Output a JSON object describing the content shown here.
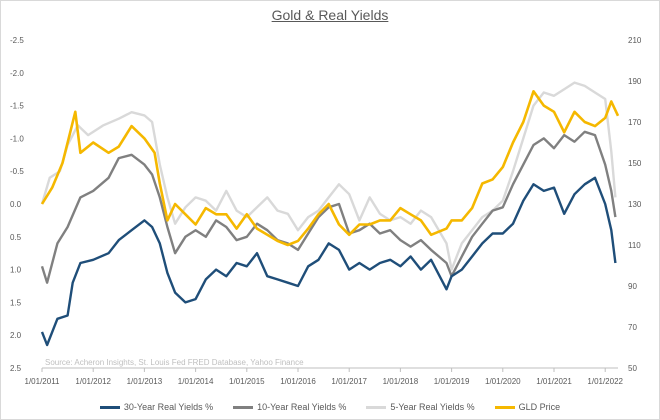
{
  "chart_data": {
    "type": "line",
    "title": "Gold & Real Yields",
    "source_note": "Source: Acheron Insights, St. Louis Fed FRED Database, Yahoo Finance",
    "left_axis": {
      "inverted": true,
      "range": [
        -2.5,
        2.5
      ],
      "tick_values": [
        -2.5,
        -2.0,
        -1.5,
        -1.0,
        -0.5,
        0.0,
        0.5,
        1.0,
        1.5,
        2.0,
        2.5
      ],
      "tick_labels": [
        "-2.5",
        "-2.0",
        "-1.5",
        "-1.0",
        "-0.5",
        "0.0",
        "0.5",
        "1.0",
        "1.5",
        "2.0",
        "2.5"
      ]
    },
    "right_axis": {
      "range": [
        50,
        210
      ],
      "tick_values": [
        210,
        190,
        170,
        150,
        130,
        110,
        90,
        70,
        50
      ],
      "tick_labels": [
        "210",
        "190",
        "170",
        "150",
        "130",
        "110",
        "90",
        "70",
        "50"
      ]
    },
    "x_axis": {
      "range": [
        2011.0,
        2022.25
      ],
      "tick_values": [
        2011,
        2012,
        2013,
        2014,
        2015,
        2016,
        2017,
        2018,
        2019,
        2020,
        2021,
        2022
      ],
      "tick_labels": [
        "1/01/2011",
        "1/01/2012",
        "1/01/2013",
        "1/01/2014",
        "1/01/2015",
        "1/01/2016",
        "1/01/2017",
        "1/01/2018",
        "1/01/2019",
        "1/01/2020",
        "1/01/2021",
        "1/01/2022"
      ]
    },
    "grid": false,
    "legend_position": "bottom",
    "series": [
      {
        "name": "5-Year Real Yields %",
        "axis": "left",
        "color": "#d9d9d9",
        "points": [
          [
            2011.0,
            0.0
          ],
          [
            2011.15,
            -0.4
          ],
          [
            2011.35,
            -0.5
          ],
          [
            2011.5,
            -0.9
          ],
          [
            2011.7,
            -1.2
          ],
          [
            2011.9,
            -1.05
          ],
          [
            2012.2,
            -1.2
          ],
          [
            2012.5,
            -1.3
          ],
          [
            2012.75,
            -1.4
          ],
          [
            2013.0,
            -1.35
          ],
          [
            2013.15,
            -1.25
          ],
          [
            2013.3,
            -0.6
          ],
          [
            2013.45,
            -0.1
          ],
          [
            2013.6,
            0.3
          ],
          [
            2013.8,
            0.05
          ],
          [
            2014.0,
            -0.1
          ],
          [
            2014.2,
            -0.05
          ],
          [
            2014.4,
            0.1
          ],
          [
            2014.6,
            -0.2
          ],
          [
            2014.8,
            0.1
          ],
          [
            2015.0,
            0.2
          ],
          [
            2015.2,
            0.05
          ],
          [
            2015.4,
            -0.1
          ],
          [
            2015.6,
            0.1
          ],
          [
            2015.8,
            0.15
          ],
          [
            2016.0,
            0.4
          ],
          [
            2016.2,
            0.2
          ],
          [
            2016.4,
            0.1
          ],
          [
            2016.6,
            -0.1
          ],
          [
            2016.8,
            -0.3
          ],
          [
            2017.0,
            -0.15
          ],
          [
            2017.2,
            0.25
          ],
          [
            2017.4,
            -0.1
          ],
          [
            2017.6,
            0.15
          ],
          [
            2017.8,
            0.25
          ],
          [
            2018.0,
            0.2
          ],
          [
            2018.2,
            0.3
          ],
          [
            2018.4,
            0.1
          ],
          [
            2018.6,
            0.2
          ],
          [
            2018.9,
            0.6
          ],
          [
            2019.0,
            1.0
          ],
          [
            2019.2,
            0.6
          ],
          [
            2019.4,
            0.4
          ],
          [
            2019.6,
            0.2
          ],
          [
            2019.8,
            0.1
          ],
          [
            2020.0,
            -0.05
          ],
          [
            2020.2,
            -0.5
          ],
          [
            2020.4,
            -1.0
          ],
          [
            2020.6,
            -1.5
          ],
          [
            2020.8,
            -1.7
          ],
          [
            2021.0,
            -1.65
          ],
          [
            2021.2,
            -1.75
          ],
          [
            2021.4,
            -1.85
          ],
          [
            2021.6,
            -1.8
          ],
          [
            2021.8,
            -1.7
          ],
          [
            2022.0,
            -1.6
          ],
          [
            2022.12,
            -0.8
          ],
          [
            2022.2,
            -0.1
          ]
        ]
      },
      {
        "name": "10-Year Real Yields %",
        "axis": "left",
        "color": "#808080",
        "points": [
          [
            2011.0,
            0.95
          ],
          [
            2011.1,
            1.2
          ],
          [
            2011.3,
            0.6
          ],
          [
            2011.5,
            0.35
          ],
          [
            2011.75,
            -0.1
          ],
          [
            2012.0,
            -0.2
          ],
          [
            2012.3,
            -0.4
          ],
          [
            2012.5,
            -0.7
          ],
          [
            2012.75,
            -0.75
          ],
          [
            2013.0,
            -0.6
          ],
          [
            2013.15,
            -0.45
          ],
          [
            2013.3,
            -0.1
          ],
          [
            2013.45,
            0.35
          ],
          [
            2013.6,
            0.75
          ],
          [
            2013.8,
            0.5
          ],
          [
            2014.0,
            0.4
          ],
          [
            2014.2,
            0.5
          ],
          [
            2014.4,
            0.25
          ],
          [
            2014.6,
            0.35
          ],
          [
            2014.8,
            0.55
          ],
          [
            2015.0,
            0.5
          ],
          [
            2015.2,
            0.3
          ],
          [
            2015.4,
            0.4
          ],
          [
            2015.6,
            0.55
          ],
          [
            2015.8,
            0.6
          ],
          [
            2016.0,
            0.7
          ],
          [
            2016.2,
            0.45
          ],
          [
            2016.4,
            0.2
          ],
          [
            2016.6,
            0.05
          ],
          [
            2016.8,
            0.0
          ],
          [
            2017.0,
            0.45
          ],
          [
            2017.2,
            0.4
          ],
          [
            2017.4,
            0.3
          ],
          [
            2017.6,
            0.45
          ],
          [
            2017.8,
            0.4
          ],
          [
            2018.0,
            0.55
          ],
          [
            2018.2,
            0.65
          ],
          [
            2018.4,
            0.55
          ],
          [
            2018.6,
            0.7
          ],
          [
            2018.9,
            0.9
          ],
          [
            2019.0,
            1.1
          ],
          [
            2019.2,
            0.8
          ],
          [
            2019.4,
            0.5
          ],
          [
            2019.6,
            0.3
          ],
          [
            2019.8,
            0.1
          ],
          [
            2020.0,
            0.05
          ],
          [
            2020.2,
            -0.3
          ],
          [
            2020.4,
            -0.6
          ],
          [
            2020.6,
            -0.9
          ],
          [
            2020.8,
            -1.0
          ],
          [
            2021.0,
            -0.85
          ],
          [
            2021.2,
            -1.05
          ],
          [
            2021.4,
            -0.95
          ],
          [
            2021.6,
            -1.1
          ],
          [
            2021.8,
            -1.05
          ],
          [
            2022.0,
            -0.6
          ],
          [
            2022.12,
            -0.2
          ],
          [
            2022.2,
            0.2
          ]
        ]
      },
      {
        "name": "30-Year Real Yields %",
        "axis": "left",
        "color": "#1f4e79",
        "points": [
          [
            2011.0,
            1.95
          ],
          [
            2011.1,
            2.15
          ],
          [
            2011.3,
            1.75
          ],
          [
            2011.5,
            1.7
          ],
          [
            2011.6,
            1.2
          ],
          [
            2011.75,
            0.9
          ],
          [
            2012.0,
            0.85
          ],
          [
            2012.3,
            0.75
          ],
          [
            2012.5,
            0.55
          ],
          [
            2012.75,
            0.4
          ],
          [
            2013.0,
            0.25
          ],
          [
            2013.15,
            0.35
          ],
          [
            2013.3,
            0.6
          ],
          [
            2013.45,
            1.05
          ],
          [
            2013.6,
            1.35
          ],
          [
            2013.8,
            1.5
          ],
          [
            2014.0,
            1.45
          ],
          [
            2014.2,
            1.15
          ],
          [
            2014.4,
            1.0
          ],
          [
            2014.6,
            1.1
          ],
          [
            2014.8,
            0.9
          ],
          [
            2015.0,
            0.95
          ],
          [
            2015.2,
            0.75
          ],
          [
            2015.4,
            1.1
          ],
          [
            2015.6,
            1.15
          ],
          [
            2015.8,
            1.2
          ],
          [
            2016.0,
            1.25
          ],
          [
            2016.2,
            0.95
          ],
          [
            2016.4,
            0.85
          ],
          [
            2016.6,
            0.6
          ],
          [
            2016.8,
            0.7
          ],
          [
            2017.0,
            1.0
          ],
          [
            2017.2,
            0.9
          ],
          [
            2017.4,
            1.0
          ],
          [
            2017.6,
            0.9
          ],
          [
            2017.8,
            0.85
          ],
          [
            2018.0,
            0.95
          ],
          [
            2018.2,
            0.8
          ],
          [
            2018.4,
            1.0
          ],
          [
            2018.6,
            0.85
          ],
          [
            2018.9,
            1.3
          ],
          [
            2019.0,
            1.1
          ],
          [
            2019.2,
            1.0
          ],
          [
            2019.4,
            0.8
          ],
          [
            2019.6,
            0.6
          ],
          [
            2019.8,
            0.45
          ],
          [
            2020.0,
            0.45
          ],
          [
            2020.2,
            0.3
          ],
          [
            2020.4,
            -0.05
          ],
          [
            2020.6,
            -0.3
          ],
          [
            2020.8,
            -0.2
          ],
          [
            2021.0,
            -0.25
          ],
          [
            2021.2,
            0.15
          ],
          [
            2021.4,
            -0.15
          ],
          [
            2021.6,
            -0.3
          ],
          [
            2021.8,
            -0.4
          ],
          [
            2022.0,
            0.0
          ],
          [
            2022.12,
            0.4
          ],
          [
            2022.2,
            0.9
          ]
        ]
      },
      {
        "name": "GLD Price",
        "axis": "right",
        "color": "#f5b800",
        "points": [
          [
            2011.0,
            130
          ],
          [
            2011.2,
            138
          ],
          [
            2011.4,
            150
          ],
          [
            2011.55,
            165
          ],
          [
            2011.65,
            175
          ],
          [
            2011.75,
            155
          ],
          [
            2012.0,
            160
          ],
          [
            2012.3,
            155
          ],
          [
            2012.5,
            158
          ],
          [
            2012.75,
            168
          ],
          [
            2013.0,
            162
          ],
          [
            2013.2,
            155
          ],
          [
            2013.3,
            140
          ],
          [
            2013.45,
            122
          ],
          [
            2013.6,
            130
          ],
          [
            2013.8,
            125
          ],
          [
            2014.0,
            120
          ],
          [
            2014.2,
            128
          ],
          [
            2014.4,
            125
          ],
          [
            2014.6,
            125
          ],
          [
            2014.8,
            118
          ],
          [
            2015.0,
            125
          ],
          [
            2015.2,
            118
          ],
          [
            2015.4,
            115
          ],
          [
            2015.6,
            112
          ],
          [
            2015.8,
            110
          ],
          [
            2016.0,
            112
          ],
          [
            2016.2,
            118
          ],
          [
            2016.4,
            125
          ],
          [
            2016.6,
            130
          ],
          [
            2016.8,
            120
          ],
          [
            2017.0,
            115
          ],
          [
            2017.2,
            120
          ],
          [
            2017.4,
            120
          ],
          [
            2017.6,
            122
          ],
          [
            2017.8,
            122
          ],
          [
            2018.0,
            128
          ],
          [
            2018.2,
            125
          ],
          [
            2018.4,
            122
          ],
          [
            2018.6,
            115
          ],
          [
            2018.9,
            118
          ],
          [
            2019.0,
            122
          ],
          [
            2019.2,
            122
          ],
          [
            2019.4,
            128
          ],
          [
            2019.6,
            140
          ],
          [
            2019.8,
            142
          ],
          [
            2020.0,
            148
          ],
          [
            2020.2,
            160
          ],
          [
            2020.4,
            170
          ],
          [
            2020.6,
            185
          ],
          [
            2020.8,
            178
          ],
          [
            2021.0,
            175
          ],
          [
            2021.2,
            165
          ],
          [
            2021.4,
            175
          ],
          [
            2021.6,
            170
          ],
          [
            2021.8,
            168
          ],
          [
            2022.0,
            172
          ],
          [
            2022.12,
            180
          ],
          [
            2022.25,
            173
          ]
        ]
      }
    ]
  }
}
